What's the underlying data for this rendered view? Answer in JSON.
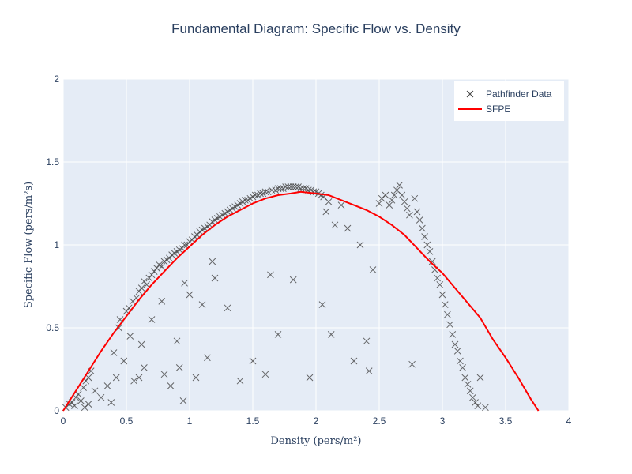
{
  "chart_data": {
    "type": "scatter",
    "title": "Fundamental Diagram: Specific Flow vs. Density",
    "xlabel": "Density (pers/m²)",
    "ylabel": "Specific Flow (pers/m²s)",
    "xlim": [
      0,
      4
    ],
    "ylim": [
      0,
      2
    ],
    "x_ticks": [
      "0",
      "0.5",
      "1",
      "1.5",
      "2",
      "2.5",
      "3",
      "3.5",
      "4"
    ],
    "y_ticks": [
      "0",
      "0.5",
      "1",
      "1.5",
      "2"
    ],
    "grid": true,
    "legend_position": "top-right",
    "series": [
      {
        "name": "Pathfinder Data",
        "type": "scatter",
        "marker": "x",
        "color": "#444444",
        "points": [
          [
            0.02,
            0.02
          ],
          [
            0.05,
            0.04
          ],
          [
            0.07,
            0.05
          ],
          [
            0.09,
            0.03
          ],
          [
            0.1,
            0.08
          ],
          [
            0.12,
            0.1
          ],
          [
            0.14,
            0.06
          ],
          [
            0.16,
            0.14
          ],
          [
            0.17,
            0.02
          ],
          [
            0.18,
            0.18
          ],
          [
            0.2,
            0.2
          ],
          [
            0.2,
            0.04
          ],
          [
            0.22,
            0.24
          ],
          [
            0.25,
            0.12
          ],
          [
            0.3,
            0.08
          ],
          [
            0.35,
            0.15
          ],
          [
            0.38,
            0.05
          ],
          [
            0.4,
            0.35
          ],
          [
            0.42,
            0.2
          ],
          [
            0.44,
            0.5
          ],
          [
            0.45,
            0.55
          ],
          [
            0.48,
            0.3
          ],
          [
            0.5,
            0.6
          ],
          [
            0.52,
            0.62
          ],
          [
            0.53,
            0.45
          ],
          [
            0.55,
            0.66
          ],
          [
            0.56,
            0.18
          ],
          [
            0.58,
            0.68
          ],
          [
            0.6,
            0.72
          ],
          [
            0.6,
            0.2
          ],
          [
            0.62,
            0.4
          ],
          [
            0.62,
            0.74
          ],
          [
            0.64,
            0.78
          ],
          [
            0.64,
            0.26
          ],
          [
            0.66,
            0.76
          ],
          [
            0.68,
            0.8
          ],
          [
            0.7,
            0.82
          ],
          [
            0.7,
            0.55
          ],
          [
            0.72,
            0.84
          ],
          [
            0.74,
            0.86
          ],
          [
            0.76,
            0.88
          ],
          [
            0.78,
            0.87
          ],
          [
            0.78,
            0.66
          ],
          [
            0.8,
            0.9
          ],
          [
            0.8,
            0.22
          ],
          [
            0.82,
            0.91
          ],
          [
            0.84,
            0.92
          ],
          [
            0.85,
            0.15
          ],
          [
            0.86,
            0.94
          ],
          [
            0.88,
            0.95
          ],
          [
            0.9,
            0.96
          ],
          [
            0.9,
            0.42
          ],
          [
            0.92,
            0.97
          ],
          [
            0.92,
            0.26
          ],
          [
            0.94,
            0.98
          ],
          [
            0.95,
            0.06
          ],
          [
            0.96,
            1.0
          ],
          [
            0.96,
            0.77
          ],
          [
            0.98,
            1.0
          ],
          [
            1.0,
            1.02
          ],
          [
            1.0,
            0.7
          ],
          [
            1.02,
            1.03
          ],
          [
            1.04,
            1.05
          ],
          [
            1.05,
            0.2
          ],
          [
            1.06,
            1.06
          ],
          [
            1.08,
            1.08
          ],
          [
            1.1,
            1.09
          ],
          [
            1.1,
            0.64
          ],
          [
            1.12,
            1.1
          ],
          [
            1.14,
            1.11
          ],
          [
            1.14,
            0.32
          ],
          [
            1.16,
            1.12
          ],
          [
            1.18,
            1.14
          ],
          [
            1.18,
            0.9
          ],
          [
            1.2,
            1.15
          ],
          [
            1.2,
            0.8
          ],
          [
            1.22,
            1.16
          ],
          [
            1.24,
            1.17
          ],
          [
            1.26,
            1.18
          ],
          [
            1.28,
            1.19
          ],
          [
            1.3,
            1.2
          ],
          [
            1.3,
            0.62
          ],
          [
            1.32,
            1.21
          ],
          [
            1.34,
            1.22
          ],
          [
            1.36,
            1.23
          ],
          [
            1.38,
            1.24
          ],
          [
            1.4,
            1.25
          ],
          [
            1.4,
            0.18
          ],
          [
            1.42,
            1.26
          ],
          [
            1.44,
            1.27
          ],
          [
            1.46,
            1.27
          ],
          [
            1.48,
            1.28
          ],
          [
            1.5,
            1.29
          ],
          [
            1.5,
            0.3
          ],
          [
            1.52,
            1.3
          ],
          [
            1.54,
            1.3
          ],
          [
            1.56,
            1.31
          ],
          [
            1.58,
            1.31
          ],
          [
            1.6,
            1.32
          ],
          [
            1.6,
            0.22
          ],
          [
            1.62,
            1.32
          ],
          [
            1.64,
            0.82
          ],
          [
            1.65,
            1.33
          ],
          [
            1.68,
            1.33
          ],
          [
            1.7,
            1.34
          ],
          [
            1.7,
            0.46
          ],
          [
            1.72,
            1.34
          ],
          [
            1.74,
            1.34
          ],
          [
            1.76,
            1.35
          ],
          [
            1.78,
            1.35
          ],
          [
            1.8,
            1.35
          ],
          [
            1.82,
            0.79
          ],
          [
            1.82,
            1.35
          ],
          [
            1.84,
            1.35
          ],
          [
            1.86,
            1.35
          ],
          [
            1.88,
            1.34
          ],
          [
            1.9,
            1.34
          ],
          [
            1.92,
            1.34
          ],
          [
            1.94,
            1.33
          ],
          [
            1.95,
            0.2
          ],
          [
            1.96,
            1.33
          ],
          [
            1.98,
            1.32
          ],
          [
            2.0,
            1.32
          ],
          [
            2.02,
            1.31
          ],
          [
            2.04,
            1.3
          ],
          [
            2.05,
            0.64
          ],
          [
            2.06,
            1.29
          ],
          [
            2.08,
            1.2
          ],
          [
            2.1,
            1.26
          ],
          [
            2.12,
            0.46
          ],
          [
            2.15,
            1.12
          ],
          [
            2.2,
            1.24
          ],
          [
            2.25,
            1.1
          ],
          [
            2.3,
            0.3
          ],
          [
            2.35,
            1.0
          ],
          [
            2.4,
            0.42
          ],
          [
            2.42,
            0.24
          ],
          [
            2.45,
            0.85
          ],
          [
            2.5,
            1.25
          ],
          [
            2.52,
            1.28
          ],
          [
            2.55,
            1.3
          ],
          [
            2.58,
            1.24
          ],
          [
            2.6,
            1.27
          ],
          [
            2.62,
            1.3
          ],
          [
            2.64,
            1.33
          ],
          [
            2.66,
            1.36
          ],
          [
            2.68,
            1.3
          ],
          [
            2.7,
            1.26
          ],
          [
            2.72,
            1.22
          ],
          [
            2.74,
            1.18
          ],
          [
            2.76,
            0.28
          ],
          [
            2.78,
            1.28
          ],
          [
            2.8,
            1.2
          ],
          [
            2.82,
            1.15
          ],
          [
            2.84,
            1.1
          ],
          [
            2.86,
            1.05
          ],
          [
            2.88,
            1.0
          ],
          [
            2.9,
            0.96
          ],
          [
            2.92,
            0.9
          ],
          [
            2.94,
            0.85
          ],
          [
            2.96,
            0.8
          ],
          [
            2.98,
            0.76
          ],
          [
            3.0,
            0.7
          ],
          [
            3.02,
            0.64
          ],
          [
            3.04,
            0.58
          ],
          [
            3.06,
            0.52
          ],
          [
            3.08,
            0.46
          ],
          [
            3.1,
            0.4
          ],
          [
            3.12,
            0.36
          ],
          [
            3.14,
            0.3
          ],
          [
            3.16,
            0.26
          ],
          [
            3.18,
            0.2
          ],
          [
            3.2,
            0.16
          ],
          [
            3.22,
            0.12
          ],
          [
            3.24,
            0.08
          ],
          [
            3.26,
            0.05
          ],
          [
            3.28,
            0.03
          ],
          [
            3.3,
            0.2
          ],
          [
            3.34,
            0.02
          ]
        ]
      },
      {
        "name": "SFPE",
        "type": "line",
        "color": "#ff0000",
        "points": [
          [
            0,
            0
          ],
          [
            0.1,
            0.12
          ],
          [
            0.2,
            0.24
          ],
          [
            0.3,
            0.36
          ],
          [
            0.4,
            0.47
          ],
          [
            0.5,
            0.57
          ],
          [
            0.6,
            0.67
          ],
          [
            0.7,
            0.76
          ],
          [
            0.8,
            0.84
          ],
          [
            0.9,
            0.92
          ],
          [
            1.0,
            0.99
          ],
          [
            1.1,
            1.06
          ],
          [
            1.2,
            1.12
          ],
          [
            1.3,
            1.17
          ],
          [
            1.4,
            1.21
          ],
          [
            1.5,
            1.25
          ],
          [
            1.6,
            1.28
          ],
          [
            1.7,
            1.3
          ],
          [
            1.8,
            1.31
          ],
          [
            1.88,
            1.32
          ],
          [
            2.0,
            1.31
          ],
          [
            2.1,
            1.3
          ],
          [
            2.2,
            1.27
          ],
          [
            2.3,
            1.24
          ],
          [
            2.4,
            1.21
          ],
          [
            2.5,
            1.17
          ],
          [
            2.6,
            1.12
          ],
          [
            2.7,
            1.06
          ],
          [
            2.8,
            0.98
          ],
          [
            2.9,
            0.9
          ],
          [
            3.0,
            0.83
          ],
          [
            3.1,
            0.74
          ],
          [
            3.2,
            0.65
          ],
          [
            3.3,
            0.56
          ],
          [
            3.4,
            0.43
          ],
          [
            3.5,
            0.32
          ],
          [
            3.6,
            0.2
          ],
          [
            3.7,
            0.07
          ],
          [
            3.76,
            0
          ]
        ]
      }
    ]
  }
}
